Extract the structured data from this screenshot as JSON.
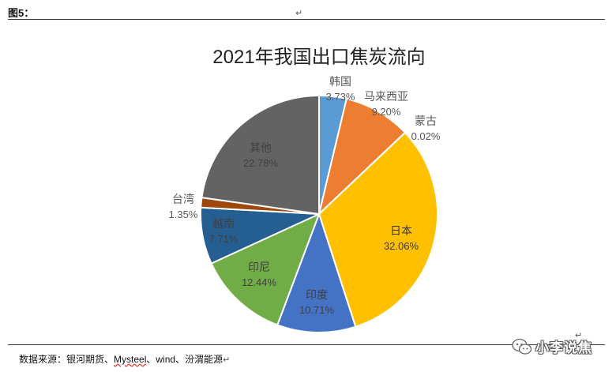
{
  "header": {
    "figure_label": "图5："
  },
  "source": {
    "prefix": "数据来源：银河期货、",
    "mysteel": "Mysteel",
    "suffix": "、wind、汾渭能源"
  },
  "watermark": {
    "text": "小李说焦"
  },
  "paragraph_mark": "↵",
  "chart_data": {
    "type": "pie",
    "title": "2021年我国出口焦炭流向",
    "start_angle_deg": 0,
    "direction": "clockwise",
    "slices": [
      {
        "name": "韩国",
        "value": 3.73,
        "label": "3.73%",
        "color": "#5b9bd5"
      },
      {
        "name": "马来西亚",
        "value": 9.2,
        "label": "9.20%",
        "color": "#ed7d31"
      },
      {
        "name": "蒙古",
        "value": 0.02,
        "label": "0.02%",
        "color": "#a5a5a5"
      },
      {
        "name": "日本",
        "value": 32.06,
        "label": "32.06%",
        "color": "#ffc000"
      },
      {
        "name": "印度",
        "value": 10.71,
        "label": "10.71%",
        "color": "#4472c4"
      },
      {
        "name": "印尼",
        "value": 12.44,
        "label": "12.44%",
        "color": "#70ad47"
      },
      {
        "name": "越南",
        "value": 7.71,
        "label": "7.71%",
        "color": "#255e91"
      },
      {
        "name": "台湾",
        "value": 1.35,
        "label": "1.35%",
        "color": "#9e480e"
      },
      {
        "name": "其他",
        "value": 22.78,
        "label": "22.78%",
        "color": "#636363"
      }
    ]
  }
}
